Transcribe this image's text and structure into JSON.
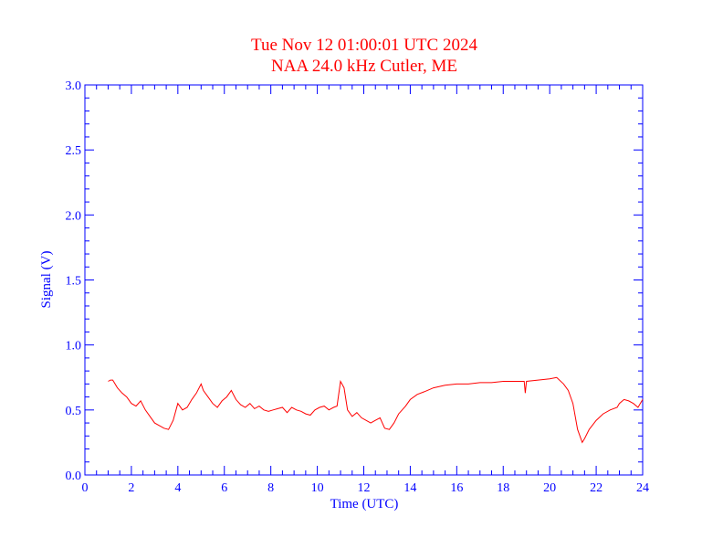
{
  "chart_data": {
    "type": "line",
    "title": "Tue Nov 12 01:00:01 UTC 2024",
    "subtitle": "NAA 24.0 kHz Cutler, ME",
    "xlabel": "Time (UTC)",
    "ylabel": "Signal (V)",
    "xlim": [
      0,
      24
    ],
    "ylim": [
      0,
      3.0
    ],
    "xticks": [
      0,
      2,
      4,
      6,
      8,
      10,
      12,
      14,
      16,
      18,
      20,
      22,
      24
    ],
    "xtick_labels": [
      "0",
      "2",
      "4",
      "6",
      "8",
      "10",
      "12",
      "14",
      "16",
      "18",
      "20",
      "22",
      "24"
    ],
    "yticks": [
      0,
      0.5,
      1.0,
      1.5,
      2.0,
      2.5,
      3.0
    ],
    "ytick_labels": [
      "0.0",
      "0.5",
      "1.0",
      "1.5",
      "2.0",
      "2.5",
      "3.0"
    ],
    "grid": false,
    "colors": {
      "title": "#ff0000",
      "axes": "#0000ff",
      "line": "#ff0000"
    },
    "series": [
      {
        "x": [
          1.0,
          1.1,
          1.2,
          1.3,
          1.4,
          1.6,
          1.8,
          2.0,
          2.2,
          2.4,
          2.6,
          2.8,
          3.0,
          3.2,
          3.4,
          3.6,
          3.8,
          4.0,
          4.2,
          4.4,
          4.6,
          4.8,
          5.0,
          5.1,
          5.3,
          5.5,
          5.7,
          5.9,
          6.1,
          6.3,
          6.5,
          6.7,
          6.9,
          7.1,
          7.3,
          7.5,
          7.7,
          7.9,
          8.1,
          8.3,
          8.5,
          8.7,
          8.9,
          9.1,
          9.3,
          9.5,
          9.7,
          9.9,
          10.1,
          10.3,
          10.5,
          10.7,
          10.85,
          11.0,
          11.15,
          11.3,
          11.5,
          11.7,
          11.9,
          12.1,
          12.3,
          12.5,
          12.7,
          12.9,
          13.1,
          13.3,
          13.5,
          13.8,
          14.0,
          14.3,
          14.6,
          15.0,
          15.5,
          16.0,
          16.5,
          17.0,
          17.5,
          18.0,
          18.5,
          18.9,
          18.95,
          19.0,
          19.5,
          20.0,
          20.3,
          20.6,
          20.8,
          21.0,
          21.2,
          21.4,
          21.5,
          21.7,
          22.0,
          22.3,
          22.6,
          22.9,
          23.0,
          23.2,
          23.4,
          23.6,
          23.8,
          24.0
        ],
        "values": [
          0.72,
          0.73,
          0.73,
          0.7,
          0.67,
          0.63,
          0.6,
          0.55,
          0.53,
          0.57,
          0.5,
          0.45,
          0.4,
          0.38,
          0.36,
          0.35,
          0.42,
          0.55,
          0.5,
          0.52,
          0.58,
          0.63,
          0.7,
          0.65,
          0.6,
          0.55,
          0.52,
          0.57,
          0.6,
          0.65,
          0.58,
          0.54,
          0.52,
          0.55,
          0.51,
          0.53,
          0.5,
          0.49,
          0.5,
          0.51,
          0.52,
          0.48,
          0.52,
          0.5,
          0.49,
          0.47,
          0.46,
          0.5,
          0.52,
          0.53,
          0.5,
          0.52,
          0.53,
          0.72,
          0.67,
          0.5,
          0.45,
          0.48,
          0.44,
          0.42,
          0.4,
          0.42,
          0.44,
          0.36,
          0.35,
          0.4,
          0.47,
          0.53,
          0.58,
          0.62,
          0.64,
          0.67,
          0.69,
          0.7,
          0.7,
          0.71,
          0.71,
          0.72,
          0.72,
          0.72,
          0.63,
          0.72,
          0.73,
          0.74,
          0.75,
          0.7,
          0.65,
          0.55,
          0.35,
          0.25,
          0.28,
          0.35,
          0.42,
          0.47,
          0.5,
          0.52,
          0.55,
          0.58,
          0.57,
          0.55,
          0.52,
          0.58
        ]
      }
    ]
  }
}
